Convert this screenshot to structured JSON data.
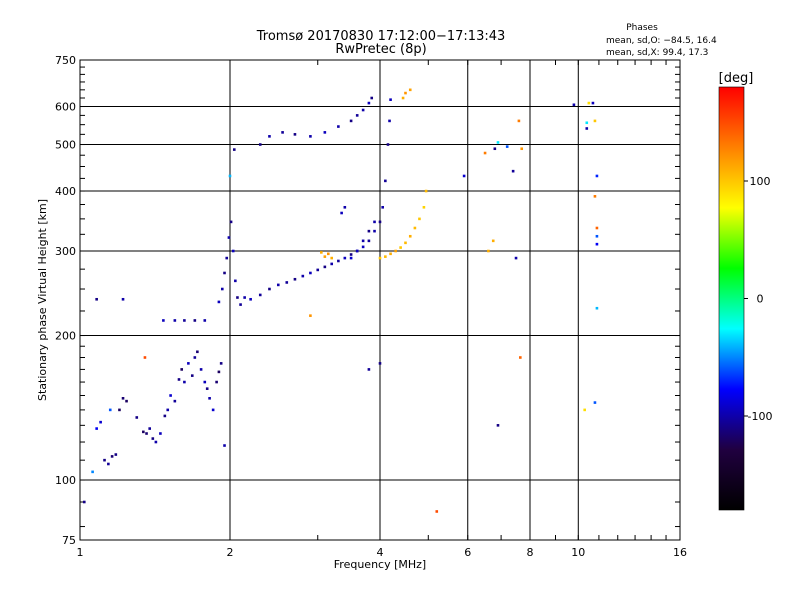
{
  "chart_data": {
    "type": "scatter",
    "title": "Tromsø 20170830 17:12:00−17:13:43",
    "subtitle": "RwPretec (8p)",
    "xlabel": "Frequency [MHz]",
    "ylabel": "Stationary phase Virtual Height [km]",
    "x_scale": "log",
    "y_scale": "log",
    "xlim": [
      1,
      16
    ],
    "ylim": [
      75,
      750
    ],
    "x_ticks": [
      1,
      2,
      4,
      6,
      8,
      10,
      16
    ],
    "y_ticks": [
      75,
      100,
      200,
      300,
      400,
      500,
      600,
      750
    ],
    "grid": true,
    "stats": {
      "heading": "Phases",
      "line1": "mean, sd,O: −84.5, 16.4",
      "line2": "mean, sd,X:  99.4, 17.3"
    },
    "colorbar": {
      "label": "[deg]",
      "range": [
        -180,
        180
      ],
      "ticks": [
        100,
        0,
        -100
      ],
      "colors": [
        "#ff0000",
        "#ff8000",
        "#ffff00",
        "#00ff00",
        "#00ffff",
        "#0000ff",
        "#200040",
        "#000000"
      ]
    },
    "series": [
      {
        "points": [
          [
            1.02,
            90,
            -110
          ],
          [
            1.08,
            128,
            -80
          ],
          [
            1.1,
            132,
            -90
          ],
          [
            1.12,
            110,
            -110
          ],
          [
            1.14,
            108,
            -105
          ],
          [
            1.16,
            112,
            -115
          ],
          [
            1.18,
            113,
            -110
          ],
          [
            1.2,
            140,
            -120
          ],
          [
            1.22,
            148,
            -115
          ],
          [
            1.24,
            146,
            -120
          ],
          [
            1.3,
            135,
            -110
          ],
          [
            1.34,
            126,
            -120
          ],
          [
            1.36,
            125,
            -115
          ],
          [
            1.38,
            128,
            -105
          ],
          [
            1.4,
            122,
            -110
          ],
          [
            1.42,
            120,
            -100
          ],
          [
            1.45,
            125,
            -95
          ],
          [
            1.48,
            136,
            -110
          ],
          [
            1.5,
            140,
            -100
          ],
          [
            1.52,
            150,
            -90
          ],
          [
            1.55,
            146,
            -105
          ],
          [
            1.58,
            162,
            -110
          ],
          [
            1.6,
            170,
            -120
          ],
          [
            1.62,
            160,
            -100
          ],
          [
            1.65,
            175,
            -95
          ],
          [
            1.68,
            165,
            -110
          ],
          [
            1.7,
            180,
            -105
          ],
          [
            1.72,
            185,
            -115
          ],
          [
            1.75,
            170,
            -100
          ],
          [
            1.78,
            160,
            -95
          ],
          [
            1.8,
            155,
            -110
          ],
          [
            1.82,
            148,
            -100
          ],
          [
            1.85,
            140,
            -90
          ],
          [
            1.88,
            160,
            -115
          ],
          [
            1.9,
            168,
            -120
          ],
          [
            1.92,
            175,
            -110
          ],
          [
            1.95,
            118,
            -100
          ],
          [
            1.47,
            215,
            -95
          ],
          [
            1.55,
            215,
            -100
          ],
          [
            1.62,
            215,
            -105
          ],
          [
            1.7,
            215,
            -110
          ],
          [
            1.78,
            215,
            -100
          ],
          [
            1.9,
            235,
            -95
          ],
          [
            1.93,
            250,
            -100
          ],
          [
            1.95,
            270,
            -110
          ],
          [
            1.97,
            290,
            -105
          ],
          [
            1.99,
            320,
            -100
          ],
          [
            2.01,
            345,
            -110
          ],
          [
            2.03,
            300,
            -95
          ],
          [
            2.05,
            260,
            -100
          ],
          [
            2.07,
            240,
            -110
          ],
          [
            2.1,
            232,
            -105
          ],
          [
            2.04,
            488,
            -110
          ],
          [
            2.14,
            240,
            -100
          ],
          [
            2.2,
            238,
            -95
          ],
          [
            2.3,
            243,
            -105
          ],
          [
            2.4,
            250,
            -110
          ],
          [
            2.5,
            255,
            -100
          ],
          [
            2.6,
            258,
            -105
          ],
          [
            2.7,
            262,
            -110
          ],
          [
            2.8,
            266,
            -100
          ],
          [
            2.9,
            270,
            -95
          ],
          [
            3.0,
            274,
            -105
          ],
          [
            3.1,
            278,
            -110
          ],
          [
            3.2,
            282,
            -100
          ],
          [
            3.3,
            286,
            -105
          ],
          [
            3.4,
            290,
            -95
          ],
          [
            3.5,
            295,
            -110
          ],
          [
            3.6,
            300,
            -100
          ],
          [
            3.7,
            306,
            -95
          ],
          [
            3.8,
            315,
            -105
          ],
          [
            3.9,
            330,
            -100
          ],
          [
            4.0,
            345,
            -110
          ],
          [
            4.05,
            370,
            -100
          ],
          [
            4.1,
            420,
            -105
          ],
          [
            4.15,
            500,
            -110
          ],
          [
            4.18,
            560,
            -100
          ],
          [
            4.2,
            620,
            -95
          ],
          [
            2.3,
            500,
            -110
          ],
          [
            2.4,
            520,
            -100
          ],
          [
            2.55,
            530,
            -105
          ],
          [
            2.7,
            525,
            -110
          ],
          [
            2.9,
            520,
            -100
          ],
          [
            3.1,
            530,
            -95
          ],
          [
            3.3,
            545,
            -100
          ],
          [
            3.5,
            560,
            -110
          ],
          [
            3.6,
            575,
            -105
          ],
          [
            3.7,
            590,
            -100
          ],
          [
            3.8,
            610,
            -95
          ],
          [
            3.85,
            625,
            -110
          ],
          [
            3.5,
            290,
            -90
          ],
          [
            3.6,
            300,
            -95
          ],
          [
            3.7,
            315,
            -100
          ],
          [
            3.8,
            330,
            -110
          ],
          [
            3.9,
            345,
            -100
          ],
          [
            3.35,
            360,
            -95
          ],
          [
            3.4,
            370,
            -100
          ],
          [
            4.0,
            175,
            -110
          ],
          [
            3.8,
            170,
            -105
          ],
          [
            1.08,
            238,
            -110
          ],
          [
            1.22,
            238,
            -100
          ],
          [
            5.9,
            430,
            -90
          ],
          [
            6.8,
            490,
            -110
          ],
          [
            7.4,
            440,
            -105
          ],
          [
            9.8,
            605,
            -100
          ],
          [
            10.7,
            610,
            -95
          ],
          [
            10.4,
            540,
            -100
          ],
          [
            7.2,
            495,
            -60
          ],
          [
            10.9,
            430,
            -70
          ],
          [
            10.9,
            228,
            -40
          ],
          [
            10.9,
            322,
            -60
          ],
          [
            10.9,
            310,
            -80
          ],
          [
            10.8,
            145,
            -60
          ],
          [
            6.9,
            130,
            -110
          ],
          [
            7.5,
            290,
            -100
          ],
          [
            1.15,
            140,
            -60
          ],
          [
            6.9,
            505,
            -30
          ],
          [
            1.06,
            104,
            -50
          ],
          [
            2.0,
            430,
            -40
          ],
          [
            10.4,
            555,
            -30
          ]
        ]
      },
      {
        "points": [
          [
            3.05,
            298,
            110
          ],
          [
            3.1,
            292,
            115
          ],
          [
            3.15,
            296,
            120
          ],
          [
            3.2,
            290,
            110
          ],
          [
            4.0,
            290,
            100
          ],
          [
            4.1,
            292,
            105
          ],
          [
            4.2,
            296,
            110
          ],
          [
            4.3,
            300,
            115
          ],
          [
            4.4,
            305,
            100
          ],
          [
            4.5,
            312,
            105
          ],
          [
            4.6,
            322,
            110
          ],
          [
            4.7,
            335,
            105
          ],
          [
            4.8,
            350,
            100
          ],
          [
            4.9,
            370,
            95
          ],
          [
            4.95,
            400,
            105
          ],
          [
            4.5,
            640,
            120
          ],
          [
            4.6,
            650,
            115
          ],
          [
            4.45,
            625,
            110
          ],
          [
            6.5,
            480,
            130
          ],
          [
            7.6,
            560,
            130
          ],
          [
            7.7,
            490,
            120
          ],
          [
            6.75,
            315,
            110
          ],
          [
            10.5,
            610,
            90
          ],
          [
            10.8,
            560,
            100
          ],
          [
            10.8,
            390,
            130
          ],
          [
            10.9,
            335,
            140
          ],
          [
            10.3,
            140,
            90
          ],
          [
            7.65,
            180,
            140
          ],
          [
            5.2,
            86,
            150
          ],
          [
            1.35,
            180,
            150
          ],
          [
            2.9,
            220,
            120
          ],
          [
            6.6,
            300,
            110
          ]
        ]
      }
    ]
  }
}
